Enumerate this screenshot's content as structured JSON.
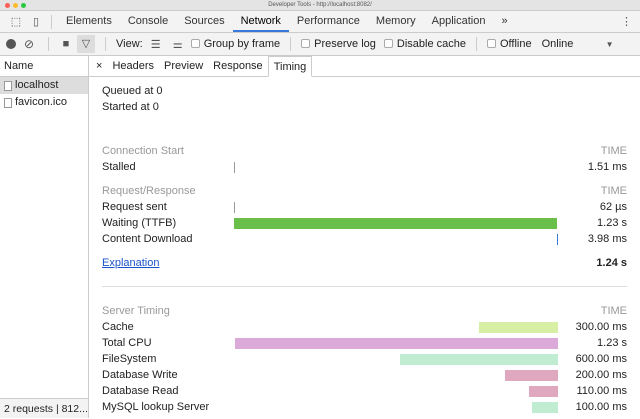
{
  "window": {
    "title": "Developer Tools - http://localhost:8082/"
  },
  "tabs": [
    {
      "label": "Elements"
    },
    {
      "label": "Console"
    },
    {
      "label": "Sources"
    },
    {
      "label": "Network",
      "active": true
    },
    {
      "label": "Performance"
    },
    {
      "label": "Memory"
    },
    {
      "label": "Application"
    }
  ],
  "more_tabs": "»",
  "toolbar": {
    "view_label": "View:",
    "group_by_frame": "Group by frame",
    "preserve_log": "Preserve log",
    "disable_cache": "Disable cache",
    "offline": "Offline",
    "throttle": "Online"
  },
  "sidebar": {
    "header": "Name",
    "items": [
      {
        "label": "localhost",
        "selected": true
      },
      {
        "label": "favicon.ico"
      }
    ],
    "footer": "2 requests | 812..."
  },
  "detail_tabs": {
    "close": "×",
    "items": [
      "Headers",
      "Preview",
      "Response",
      "Timing"
    ],
    "active": "Timing"
  },
  "timing": {
    "queued": "Queued at 0",
    "started": "Started at 0",
    "connection": {
      "title": "Connection Start",
      "time_header": "TIME",
      "rows": [
        {
          "label": "Stalled",
          "value": "1.51 ms"
        }
      ]
    },
    "request": {
      "title": "Request/Response",
      "time_header": "TIME",
      "rows": [
        {
          "label": "Request sent",
          "value": "62 µs"
        },
        {
          "label": "Waiting (TTFB)",
          "value": "1.23 s"
        },
        {
          "label": "Content Download",
          "value": "3.98 ms"
        }
      ]
    },
    "explanation": "Explanation",
    "total": "1.24 s",
    "server": {
      "title": "Server Timing",
      "time_header": "TIME",
      "rows": [
        {
          "label": "Cache",
          "value": "300.00 ms",
          "ms": 300,
          "color": "#d7efa5"
        },
        {
          "label": "Total CPU",
          "value": "1.23 s",
          "ms": 1230,
          "color": "#dcaad8"
        },
        {
          "label": "FileSystem",
          "value": "600.00 ms",
          "ms": 600,
          "color": "#c0ecd2"
        },
        {
          "label": "Database Write",
          "value": "200.00 ms",
          "ms": 200,
          "color": "#e0a8bf"
        },
        {
          "label": "Database Read",
          "value": "110.00 ms",
          "ms": 110,
          "color": "#e0a8bf"
        },
        {
          "label": "MySQL lookup Server",
          "value": "100.00 ms",
          "ms": 100,
          "color": "#c0ecd2"
        }
      ]
    }
  },
  "colors": {
    "ttfb": "#6abf4b",
    "accent": "#3879d9"
  }
}
